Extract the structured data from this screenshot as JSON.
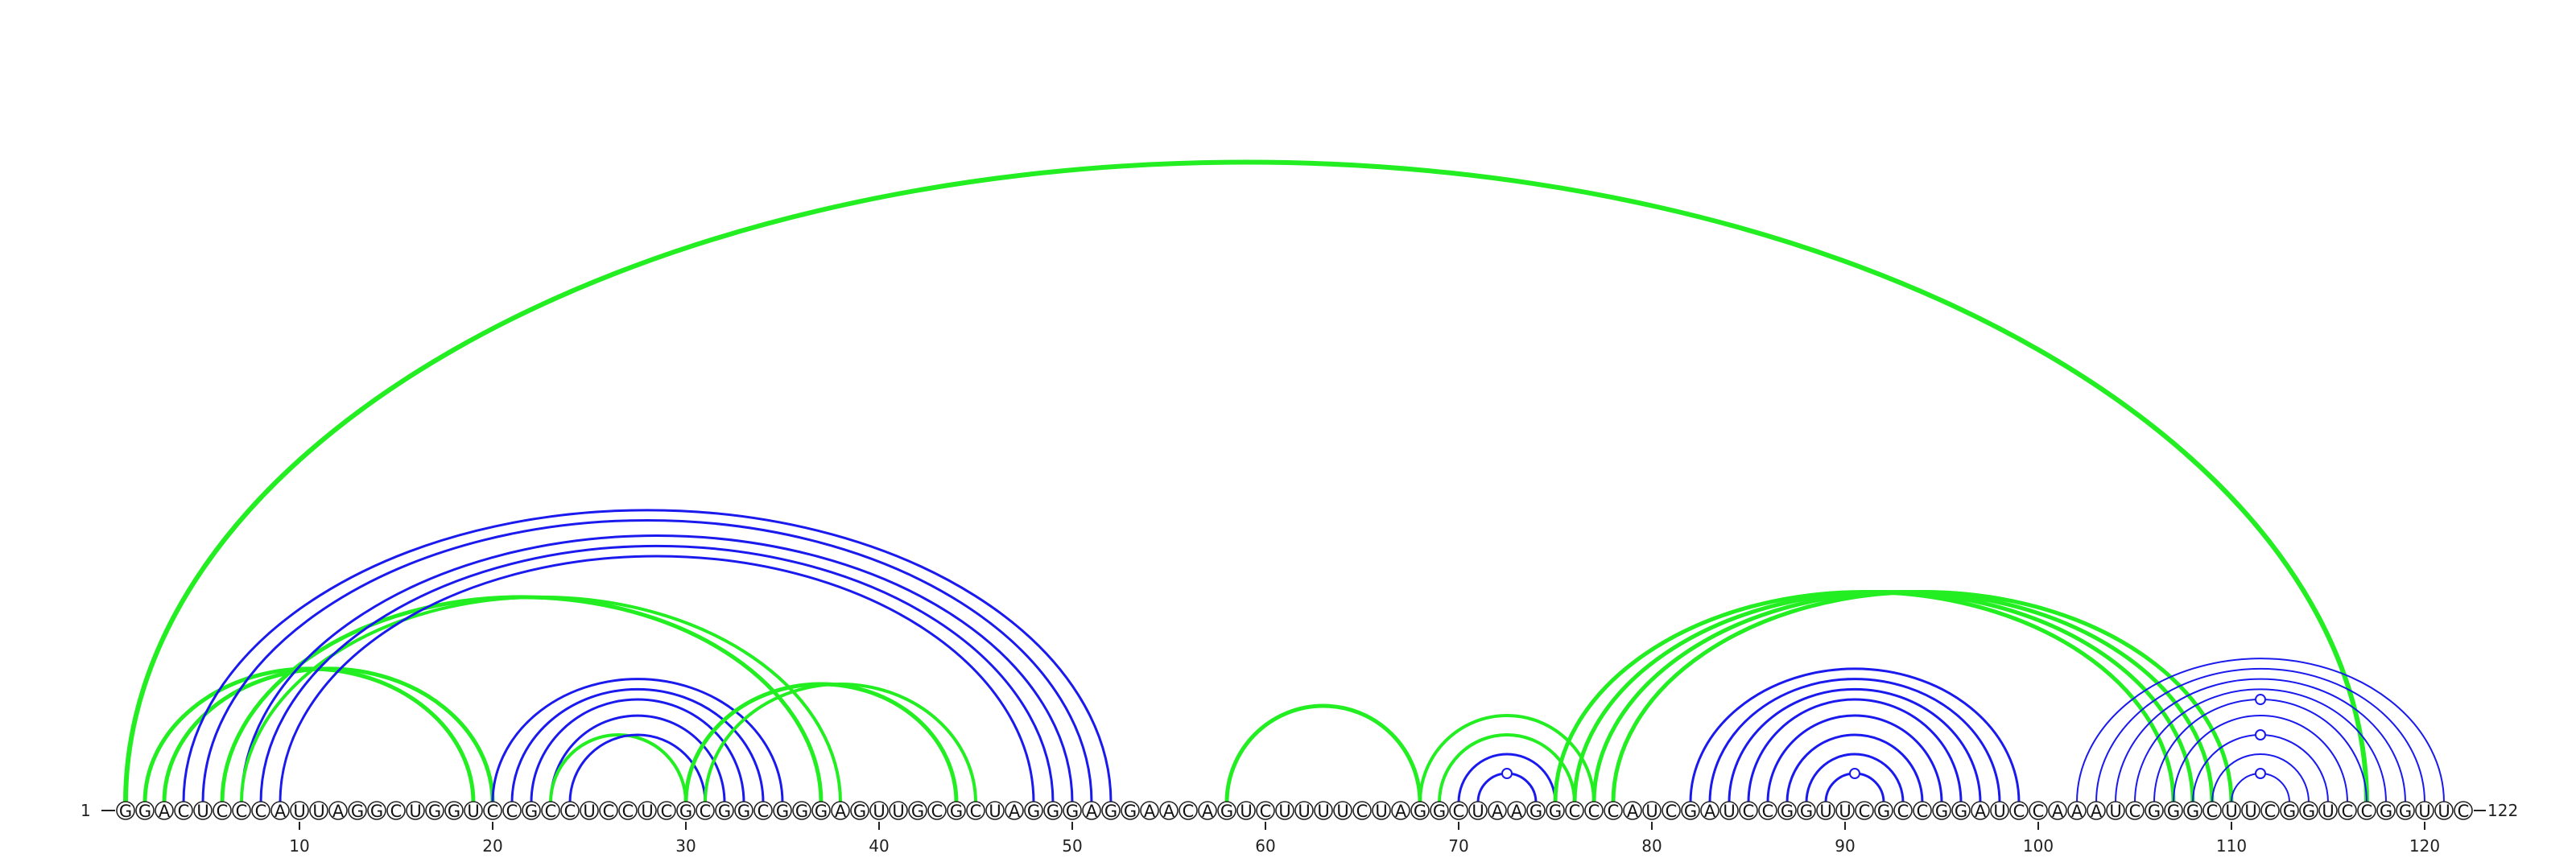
{
  "sequence": "GGACUCCCAUUAGGCUGGUCCGCCUCCUCGCGGCGGGAGUUGCGCUAGGGAGGAACAGUCUUUUCUAGGCUAAGGCCCAUCGAUCCGGUUCGCCGGAUCCAAAUCGGGCUUCGGUCCGGUUC",
  "start_label": "1",
  "end_label": "122",
  "tick_positions": [
    10,
    20,
    30,
    40,
    50,
    60,
    70,
    80,
    90,
    100,
    110,
    120
  ],
  "colors": {
    "green": "#22ee22",
    "blue": "#1a1aee"
  },
  "arcs": [
    {
      "i": 1,
      "j": 117,
      "color": "green",
      "width": 6
    },
    {
      "i": 2,
      "j": 19,
      "color": "green",
      "width": 5
    },
    {
      "i": 3,
      "j": 20,
      "color": "green",
      "width": 5
    },
    {
      "i": 4,
      "j": 52,
      "color": "blue",
      "width": 3
    },
    {
      "i": 5,
      "j": 51,
      "color": "blue",
      "width": 3
    },
    {
      "i": 6,
      "j": 37,
      "color": "green",
      "width": 5
    },
    {
      "i": 7,
      "j": 50,
      "color": "blue",
      "width": 3
    },
    {
      "i": 7,
      "j": 38,
      "color": "green",
      "width": 4
    },
    {
      "i": 8,
      "j": 49,
      "color": "blue",
      "width": 3
    },
    {
      "i": 9,
      "j": 48,
      "color": "blue",
      "width": 3
    },
    {
      "i": 20,
      "j": 35,
      "color": "blue",
      "width": 3
    },
    {
      "i": 21,
      "j": 34,
      "color": "blue",
      "width": 3
    },
    {
      "i": 22,
      "j": 33,
      "color": "blue",
      "width": 3
    },
    {
      "i": 23,
      "j": 32,
      "color": "blue",
      "width": 3
    },
    {
      "i": 23,
      "j": 30,
      "color": "green",
      "width": 4
    },
    {
      "i": 24,
      "j": 31,
      "color": "blue",
      "width": 3
    },
    {
      "i": 30,
      "j": 44,
      "color": "green",
      "width": 5
    },
    {
      "i": 31,
      "j": 45,
      "color": "green",
      "width": 4
    },
    {
      "i": 58,
      "j": 68,
      "color": "green",
      "width": 5
    },
    {
      "i": 68,
      "j": 77,
      "color": "green",
      "width": 4
    },
    {
      "i": 69,
      "j": 76,
      "color": "green",
      "width": 4
    },
    {
      "i": 70,
      "j": 75,
      "color": "blue",
      "width": 3
    },
    {
      "i": 71,
      "j": 74,
      "color": "blue",
      "width": 3
    },
    {
      "i": 75,
      "j": 107,
      "color": "green",
      "width": 5
    },
    {
      "i": 76,
      "j": 108,
      "color": "green",
      "width": 5
    },
    {
      "i": 77,
      "j": 109,
      "color": "green",
      "width": 5
    },
    {
      "i": 78,
      "j": 110,
      "color": "green",
      "width": 5
    },
    {
      "i": 82,
      "j": 99,
      "color": "blue",
      "width": 3
    },
    {
      "i": 83,
      "j": 98,
      "color": "blue",
      "width": 3
    },
    {
      "i": 84,
      "j": 97,
      "color": "blue",
      "width": 3
    },
    {
      "i": 85,
      "j": 96,
      "color": "blue",
      "width": 3
    },
    {
      "i": 86,
      "j": 95,
      "color": "blue",
      "width": 3
    },
    {
      "i": 87,
      "j": 94,
      "color": "blue",
      "width": 3
    },
    {
      "i": 88,
      "j": 93,
      "color": "blue",
      "width": 3
    },
    {
      "i": 89,
      "j": 92,
      "color": "blue",
      "width": 3
    },
    {
      "i": 102,
      "j": 121,
      "color": "blue",
      "width": 2
    },
    {
      "i": 103,
      "j": 120,
      "color": "blue",
      "width": 2
    },
    {
      "i": 104,
      "j": 119,
      "color": "blue",
      "width": 2
    },
    {
      "i": 105,
      "j": 118,
      "color": "blue",
      "width": 2
    },
    {
      "i": 106,
      "j": 117,
      "color": "blue",
      "width": 2
    },
    {
      "i": 107,
      "j": 116,
      "color": "blue",
      "width": 2
    },
    {
      "i": 108,
      "j": 115,
      "color": "blue",
      "width": 2
    },
    {
      "i": 109,
      "j": 114,
      "color": "blue",
      "width": 2
    },
    {
      "i": 110,
      "j": 113,
      "color": "blue",
      "width": 2
    }
  ],
  "pair_markers": [
    {
      "i": 71,
      "j": 74
    },
    {
      "i": 89,
      "j": 92
    },
    {
      "i": 110,
      "j": 113
    },
    {
      "i": 108,
      "j": 115
    },
    {
      "i": 106,
      "j": 117
    }
  ]
}
